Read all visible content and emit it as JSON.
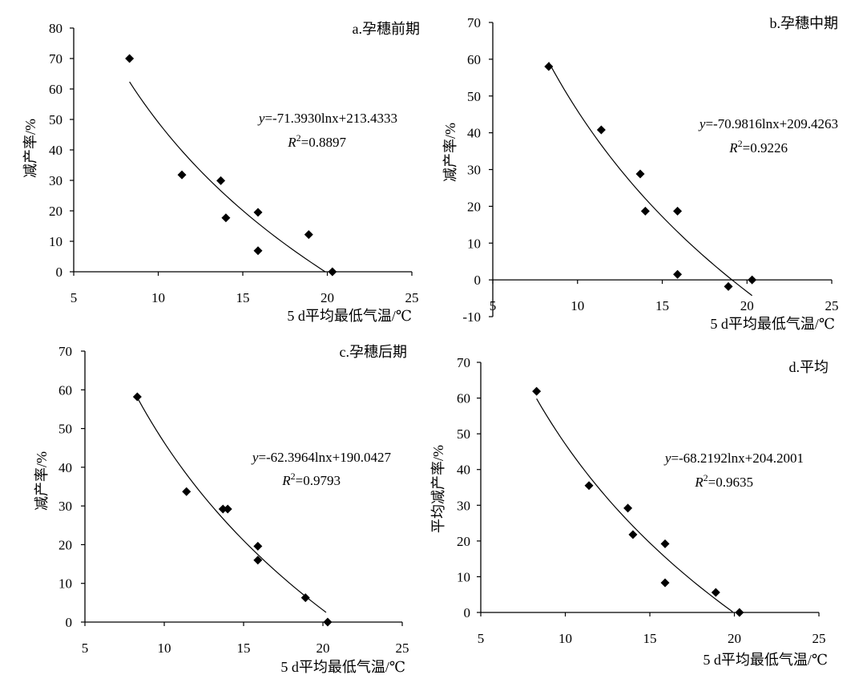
{
  "figure": {
    "note": ""
  },
  "chart_data": [
    {
      "type": "scatter",
      "title": "a.孕穗前期",
      "xlabel": "5 d平均最低气温/℃",
      "ylabel": "减产率/%",
      "xlim": [
        5,
        25
      ],
      "ylim": [
        0,
        80
      ],
      "xticks": [
        5,
        10,
        15,
        20,
        25
      ],
      "yticks": [
        0,
        10,
        20,
        30,
        40,
        50,
        60,
        70,
        80
      ],
      "points": [
        {
          "x": 8.3,
          "y": 70
        },
        {
          "x": 11.4,
          "y": 31.8
        },
        {
          "x": 13.7,
          "y": 29.9
        },
        {
          "x": 14.0,
          "y": 17.7
        },
        {
          "x": 15.9,
          "y": 19.5
        },
        {
          "x": 15.9,
          "y": 6.9
        },
        {
          "x": 18.9,
          "y": 12.2
        },
        {
          "x": 20.3,
          "y": 0
        }
      ],
      "trend": {
        "type": "log",
        "a": -71.393,
        "b": 213.4333,
        "x_from": 8.3,
        "x_to": 19.9
      },
      "equation": {
        "y_label": "y",
        "equation_rest": "=-71.3930lnx+213.4333",
        "r2_label": "R",
        "r2_sup": "2",
        "r2_rest": "=0.8897"
      }
    },
    {
      "type": "scatter",
      "title": "b.孕穗中期",
      "xlabel": "5 d平均最低气温/℃",
      "ylabel": "减产率/%",
      "xlim": [
        5,
        25
      ],
      "ylim": [
        -10,
        70
      ],
      "xticks": [
        5,
        10,
        15,
        20,
        25
      ],
      "yticks": [
        -10,
        0,
        10,
        20,
        30,
        40,
        50,
        60,
        70
      ],
      "points": [
        {
          "x": 8.3,
          "y": 58
        },
        {
          "x": 11.4,
          "y": 40.8
        },
        {
          "x": 13.7,
          "y": 28.8
        },
        {
          "x": 14.0,
          "y": 18.7
        },
        {
          "x": 15.9,
          "y": 18.7
        },
        {
          "x": 15.9,
          "y": 1.5
        },
        {
          "x": 18.9,
          "y": -1.8
        },
        {
          "x": 20.3,
          "y": 0
        }
      ],
      "trend": {
        "type": "log",
        "a": -70.9816,
        "b": 209.4263,
        "x_from": 8.3,
        "x_to": 20.3
      },
      "equation": {
        "y_label": "y",
        "equation_rest": "=-70.9816lnx+209.4263",
        "r2_label": "R",
        "r2_sup": "2",
        "r2_rest": "=0.9226"
      }
    },
    {
      "type": "scatter",
      "title": "c.孕穗后期",
      "xlabel": "5 d平均最低气温/℃",
      "ylabel": "减产率/%",
      "xlim": [
        5,
        25
      ],
      "ylim": [
        0,
        70
      ],
      "xticks": [
        5,
        10,
        15,
        20,
        25
      ],
      "yticks": [
        0,
        10,
        20,
        30,
        40,
        50,
        60,
        70
      ],
      "points": [
        {
          "x": 8.3,
          "y": 58.2
        },
        {
          "x": 11.4,
          "y": 33.7
        },
        {
          "x": 13.7,
          "y": 29.2
        },
        {
          "x": 14.0,
          "y": 29.2
        },
        {
          "x": 15.9,
          "y": 19.6
        },
        {
          "x": 15.9,
          "y": 16.0
        },
        {
          "x": 18.9,
          "y": 6.3
        },
        {
          "x": 20.3,
          "y": 0
        }
      ],
      "trend": {
        "type": "log",
        "a": -62.3964,
        "b": 190.0427,
        "x_from": 8.3,
        "x_to": 20.2
      },
      "equation": {
        "y_label": "y",
        "equation_rest": "=-62.3964lnx+190.0427",
        "r2_label": "R",
        "r2_sup": "2",
        "r2_rest": "=0.9793"
      }
    },
    {
      "type": "scatter",
      "title": "d.平均",
      "xlabel": "5 d平均最低气温/℃",
      "ylabel": "平均减产率/%",
      "xlim": [
        5,
        25
      ],
      "ylim": [
        0,
        70
      ],
      "xticks": [
        5,
        10,
        15,
        20,
        25
      ],
      "yticks": [
        0,
        10,
        20,
        30,
        40,
        50,
        60,
        70
      ],
      "points": [
        {
          "x": 8.3,
          "y": 61.9
        },
        {
          "x": 11.4,
          "y": 35.5
        },
        {
          "x": 13.7,
          "y": 29.2
        },
        {
          "x": 14.0,
          "y": 21.8
        },
        {
          "x": 15.9,
          "y": 19.2
        },
        {
          "x": 15.9,
          "y": 8.3
        },
        {
          "x": 18.9,
          "y": 5.6
        },
        {
          "x": 20.3,
          "y": 0
        }
      ],
      "trend": {
        "type": "log",
        "a": -68.2192,
        "b": 204.2001,
        "x_from": 8.3,
        "x_to": 19.9
      },
      "equation": {
        "y_label": "y",
        "equation_rest": "=-68.2192lnx+204.2001",
        "r2_label": "R",
        "r2_sup": "2",
        "r2_rest": "=0.9635"
      }
    }
  ]
}
